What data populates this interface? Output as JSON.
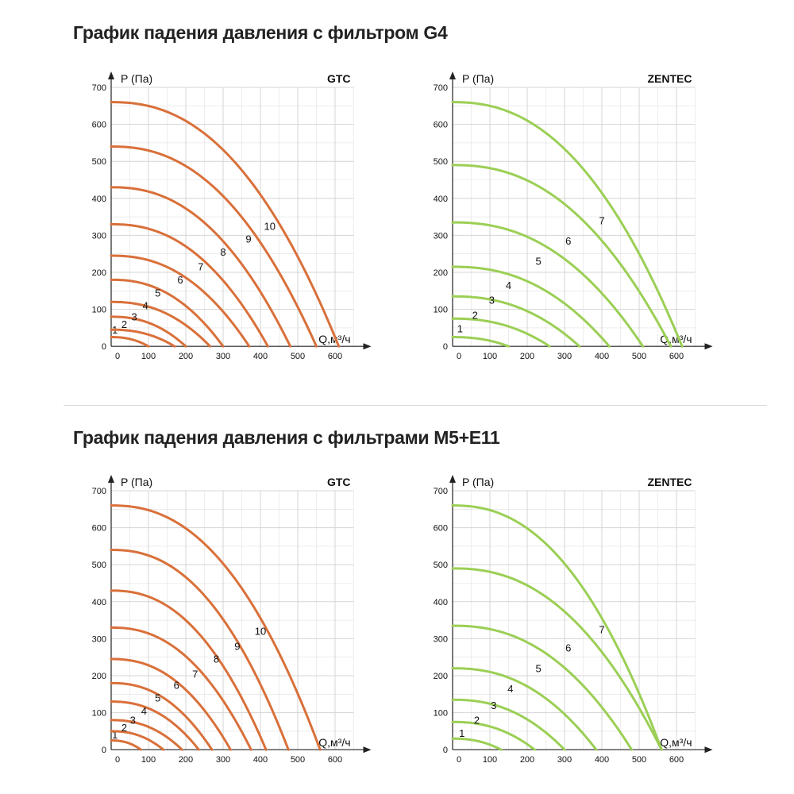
{
  "titles": {
    "g4": "График падения давления с фильтром G4",
    "m5e11": "График падения давления с фильтрами M5+E11"
  },
  "colors": {
    "gtc": "#d9703a",
    "zentec": "#9bcf55",
    "grid": "#d4d4d4",
    "axis": "#222222"
  },
  "chart_data": [
    {
      "id": "g4-gtc",
      "type": "line",
      "brand": "GTC",
      "ylabel": "P (Па)",
      "xlabel": "Q,м³/ч",
      "xlim": [
        0,
        650
      ],
      "ylim": [
        0,
        700
      ],
      "xticks": [
        0,
        100,
        200,
        300,
        400,
        500,
        600
      ],
      "yticks": [
        0,
        100,
        200,
        300,
        400,
        500,
        600,
        700
      ],
      "grid": true,
      "series": [
        {
          "name": "1",
          "p0": 25,
          "q0": 100,
          "label_pos": [
            10,
            35
          ]
        },
        {
          "name": "2",
          "p0": 45,
          "q0": 170,
          "label_pos": [
            35,
            50
          ]
        },
        {
          "name": "3",
          "p0": 80,
          "q0": 200,
          "label_pos": [
            62,
            70
          ]
        },
        {
          "name": "4",
          "p0": 120,
          "q0": 265,
          "label_pos": [
            92,
            100
          ]
        },
        {
          "name": "5",
          "p0": 180,
          "q0": 300,
          "label_pos": [
            125,
            135
          ]
        },
        {
          "name": "6",
          "p0": 245,
          "q0": 370,
          "label_pos": [
            185,
            170
          ]
        },
        {
          "name": "7",
          "p0": 330,
          "q0": 420,
          "label_pos": [
            240,
            205
          ]
        },
        {
          "name": "8",
          "p0": 430,
          "q0": 480,
          "label_pos": [
            300,
            245
          ]
        },
        {
          "name": "9",
          "p0": 540,
          "q0": 550,
          "label_pos": [
            368,
            280
          ]
        },
        {
          "name": "10",
          "p0": 660,
          "q0": 610,
          "label_pos": [
            425,
            315
          ]
        }
      ]
    },
    {
      "id": "g4-zentec",
      "type": "line",
      "brand": "ZENTEC",
      "ylabel": "P (Па)",
      "xlabel": "Q,м³/ч",
      "xlim": [
        0,
        650
      ],
      "ylim": [
        0,
        700
      ],
      "xticks": [
        0,
        100,
        200,
        300,
        400,
        500,
        600
      ],
      "yticks": [
        0,
        100,
        200,
        300,
        400,
        500,
        600,
        700
      ],
      "grid": true,
      "series": [
        {
          "name": "1",
          "p0": 25,
          "q0": 150,
          "label_pos": [
            20,
            38
          ]
        },
        {
          "name": "2",
          "p0": 75,
          "q0": 260,
          "label_pos": [
            60,
            75
          ]
        },
        {
          "name": "3",
          "p0": 135,
          "q0": 340,
          "label_pos": [
            105,
            115
          ]
        },
        {
          "name": "4",
          "p0": 215,
          "q0": 420,
          "label_pos": [
            150,
            155
          ]
        },
        {
          "name": "5",
          "p0": 335,
          "q0": 510,
          "label_pos": [
            230,
            220
          ]
        },
        {
          "name": "6",
          "p0": 490,
          "q0": 585,
          "label_pos": [
            310,
            275
          ]
        },
        {
          "name": "7",
          "p0": 660,
          "q0": 615,
          "label_pos": [
            400,
            330
          ]
        }
      ]
    },
    {
      "id": "m5e11-gtc",
      "type": "line",
      "brand": "GTC",
      "ylabel": "P (Па)",
      "xlabel": "Q,м³/ч",
      "xlim": [
        0,
        650
      ],
      "ylim": [
        0,
        700
      ],
      "xticks": [
        0,
        100,
        200,
        300,
        400,
        500,
        600
      ],
      "yticks": [
        0,
        100,
        200,
        300,
        400,
        500,
        600,
        700
      ],
      "grid": true,
      "series": [
        {
          "name": "1",
          "p0": 25,
          "q0": 80,
          "label_pos": [
            10,
            30
          ]
        },
        {
          "name": "2",
          "p0": 50,
          "q0": 140,
          "label_pos": [
            35,
            50
          ]
        },
        {
          "name": "3",
          "p0": 80,
          "q0": 190,
          "label_pos": [
            58,
            70
          ]
        },
        {
          "name": "4",
          "p0": 130,
          "q0": 235,
          "label_pos": [
            88,
            95
          ]
        },
        {
          "name": "5",
          "p0": 180,
          "q0": 270,
          "label_pos": [
            125,
            130
          ]
        },
        {
          "name": "6",
          "p0": 245,
          "q0": 320,
          "label_pos": [
            175,
            165
          ]
        },
        {
          "name": "7",
          "p0": 330,
          "q0": 375,
          "label_pos": [
            225,
            195
          ]
        },
        {
          "name": "8",
          "p0": 430,
          "q0": 415,
          "label_pos": [
            282,
            235
          ]
        },
        {
          "name": "9",
          "p0": 540,
          "q0": 475,
          "label_pos": [
            338,
            270
          ]
        },
        {
          "name": "10",
          "p0": 660,
          "q0": 560,
          "label_pos": [
            400,
            310
          ]
        }
      ]
    },
    {
      "id": "m5e11-zentec",
      "type": "line",
      "brand": "ZENTEC",
      "ylabel": "P (Па)",
      "xlabel": "Q,м³/ч",
      "xlim": [
        0,
        650
      ],
      "ylim": [
        0,
        700
      ],
      "xticks": [
        0,
        100,
        200,
        300,
        400,
        500,
        600
      ],
      "yticks": [
        0,
        100,
        200,
        300,
        400,
        500,
        600,
        700
      ],
      "grid": true,
      "series": [
        {
          "name": "1",
          "p0": 30,
          "q0": 130,
          "label_pos": [
            25,
            35
          ]
        },
        {
          "name": "2",
          "p0": 75,
          "q0": 220,
          "label_pos": [
            65,
            70
          ]
        },
        {
          "name": "3",
          "p0": 135,
          "q0": 300,
          "label_pos": [
            110,
            110
          ]
        },
        {
          "name": "4",
          "p0": 220,
          "q0": 385,
          "label_pos": [
            155,
            155
          ]
        },
        {
          "name": "5",
          "p0": 335,
          "q0": 480,
          "label_pos": [
            230,
            210
          ]
        },
        {
          "name": "6",
          "p0": 490,
          "q0": 560,
          "label_pos": [
            310,
            265
          ]
        },
        {
          "name": "7",
          "p0": 660,
          "q0": 560,
          "label_pos": [
            400,
            315
          ]
        }
      ]
    }
  ]
}
